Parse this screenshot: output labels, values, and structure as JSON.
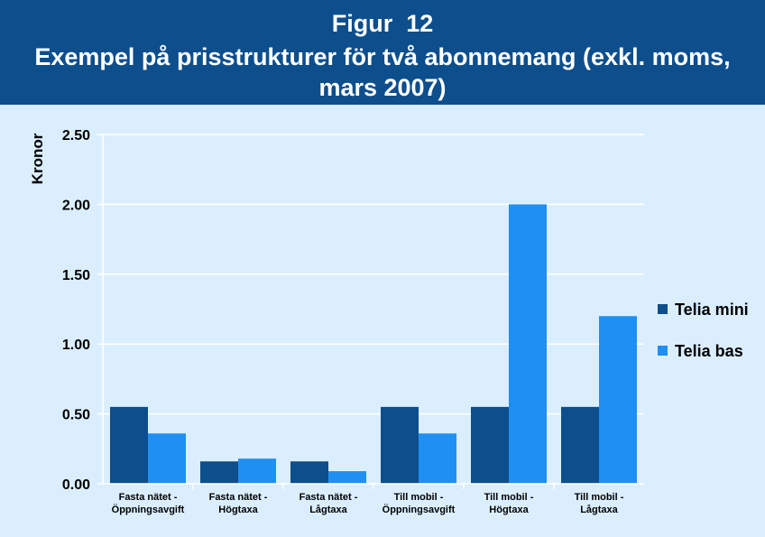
{
  "figure": {
    "label": "Figur  12",
    "title": "Exempel på prisstrukturer för två abonnemang (exkl. moms, mars 2007)"
  },
  "colors": {
    "header_bg": "#0d4e8d",
    "plot_bg": "#dbeefd",
    "series_1": "#0d4e8d",
    "series_2": "#1f8ff3"
  },
  "chart_data": {
    "type": "bar",
    "title": "Exempel på prisstrukturer för två abonnemang (exkl. moms, mars 2007)",
    "xlabel": "",
    "ylabel": "Kronor",
    "ylim": [
      0,
      2.5
    ],
    "yticks": [
      "0.00",
      "0.50",
      "1.00",
      "1.50",
      "2.00",
      "2.50"
    ],
    "ytick_values": [
      0,
      0.5,
      1.0,
      1.5,
      2.0,
      2.5
    ],
    "grid": true,
    "legend_position": "right",
    "categories": [
      [
        "Fasta nätet -",
        "Öppningsavgift"
      ],
      [
        "Fasta nätet -",
        "Högtaxa"
      ],
      [
        "Fasta nätet -",
        "Lågtaxa"
      ],
      [
        "Till mobil -",
        "Öppningsavgift"
      ],
      [
        "Till mobil -",
        "Högtaxa"
      ],
      [
        "Till mobil -",
        "Lågtaxa"
      ]
    ],
    "series": [
      {
        "name": "Telia mini",
        "values": [
          0.55,
          0.16,
          0.16,
          0.55,
          0.55,
          0.55
        ]
      },
      {
        "name": "Telia bas",
        "values": [
          0.36,
          0.18,
          0.09,
          0.36,
          2.0,
          1.2
        ]
      }
    ]
  }
}
